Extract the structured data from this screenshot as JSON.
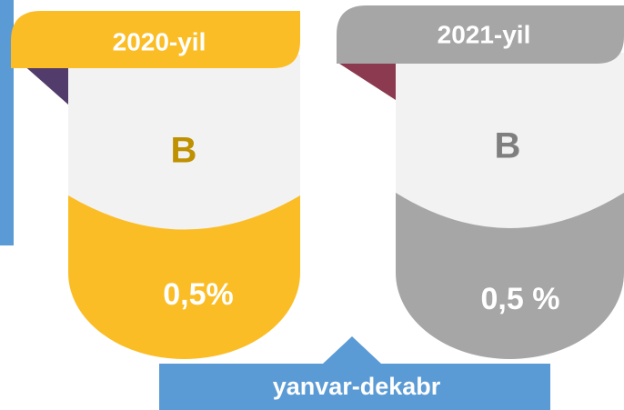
{
  "cards": [
    {
      "year": "2020-yil",
      "letter": "B",
      "value": "0,5%"
    },
    {
      "year": "2021-yil",
      "letter": "B",
      "value": "0,5 %"
    }
  ],
  "footer": {
    "label": "yanvar-dekabr"
  }
}
